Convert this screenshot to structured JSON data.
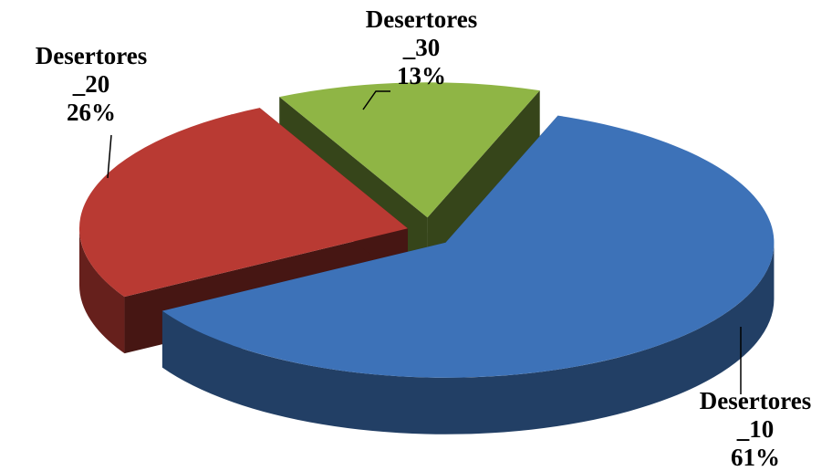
{
  "chart_data": {
    "type": "pie",
    "categories": [
      "Desertores _10",
      "Desertores _20",
      "Desertores _30"
    ],
    "values": [
      61,
      26,
      13
    ],
    "value_labels": [
      "61%",
      "26%",
      "13%"
    ],
    "colors": [
      "#3d72b8",
      "#b93a33",
      "#8fb545"
    ]
  }
}
